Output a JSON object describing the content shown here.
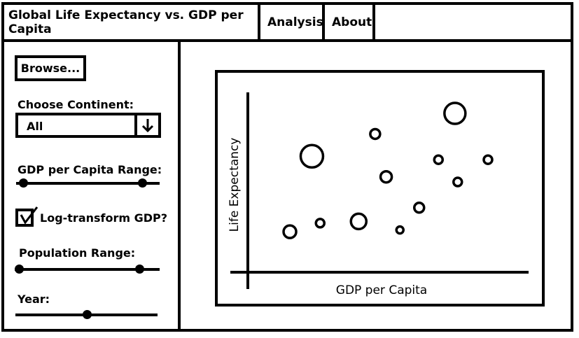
{
  "tabs": {
    "title": "Global Life Expectancy vs. GDP per Capita",
    "analysis": "Analysis",
    "about": "About"
  },
  "sidebar": {
    "browse_label": "Browse...",
    "continent_label": "Choose Continent:",
    "continent_value": "All",
    "gdp_range_label": "GDP per Capita Range:",
    "gdp_range": [
      0.05,
      0.88
    ],
    "log_label": "Log-transform GDP?",
    "log_checked": true,
    "population_range_label": "Population Range:",
    "population_range": [
      0.03,
      0.86
    ],
    "year_label": "Year:",
    "year_value": 0.5
  },
  "chart_data": {
    "type": "scatter",
    "xlabel": "GDP per Capita",
    "ylabel": "Life Expectancy",
    "grid": false,
    "points": [
      {
        "x": 0.14,
        "y": 0.22,
        "size": 9
      },
      {
        "x": 0.25,
        "y": 0.27,
        "size": 6
      },
      {
        "x": 0.22,
        "y": 0.66,
        "size": 16
      },
      {
        "x": 0.39,
        "y": 0.28,
        "size": 11
      },
      {
        "x": 0.45,
        "y": 0.79,
        "size": 7
      },
      {
        "x": 0.49,
        "y": 0.54,
        "size": 8
      },
      {
        "x": 0.54,
        "y": 0.23,
        "size": 5
      },
      {
        "x": 0.61,
        "y": 0.36,
        "size": 7
      },
      {
        "x": 0.68,
        "y": 0.64,
        "size": 6
      },
      {
        "x": 0.74,
        "y": 0.91,
        "size": 15
      },
      {
        "x": 0.75,
        "y": 0.51,
        "size": 6
      },
      {
        "x": 0.86,
        "y": 0.64,
        "size": 6
      }
    ]
  }
}
